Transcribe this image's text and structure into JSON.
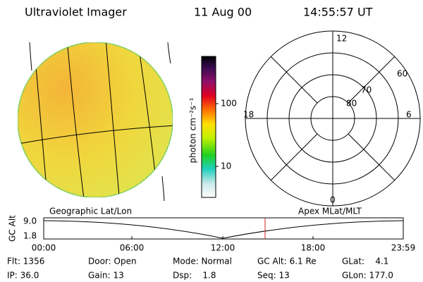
{
  "header": {
    "title": "Ultraviolet Imager",
    "date": "11 Aug 00",
    "time": "14:55:57 UT"
  },
  "colorbar": {
    "label": "photon cm⁻²s⁻¹",
    "ticks": [
      "100",
      "10"
    ]
  },
  "polar": {
    "mlt": [
      "12",
      "18",
      "6",
      "0"
    ],
    "mlat": [
      "60",
      "70",
      "80"
    ]
  },
  "captions": {
    "left": "Geographic Lat/Lon",
    "right": "Apex MLat/MLT"
  },
  "timeline": {
    "ylabel": "GC Alt",
    "yticks": [
      "9.0",
      "1.8"
    ],
    "xticks": [
      "00:00",
      "06:00",
      "12:00",
      "18:00",
      "23:59"
    ]
  },
  "info": [
    [
      "Flt: 1356",
      "IP: 36.0"
    ],
    [
      "Door: Open",
      "Gain: 13"
    ],
    [
      "Mode: Normal",
      "Dsp:    1.8"
    ],
    [
      "GC Alt: 6.1 Re",
      "Seq: 13"
    ],
    [
      "GLat:    4.1",
      "GLon: 177.0"
    ]
  ]
}
